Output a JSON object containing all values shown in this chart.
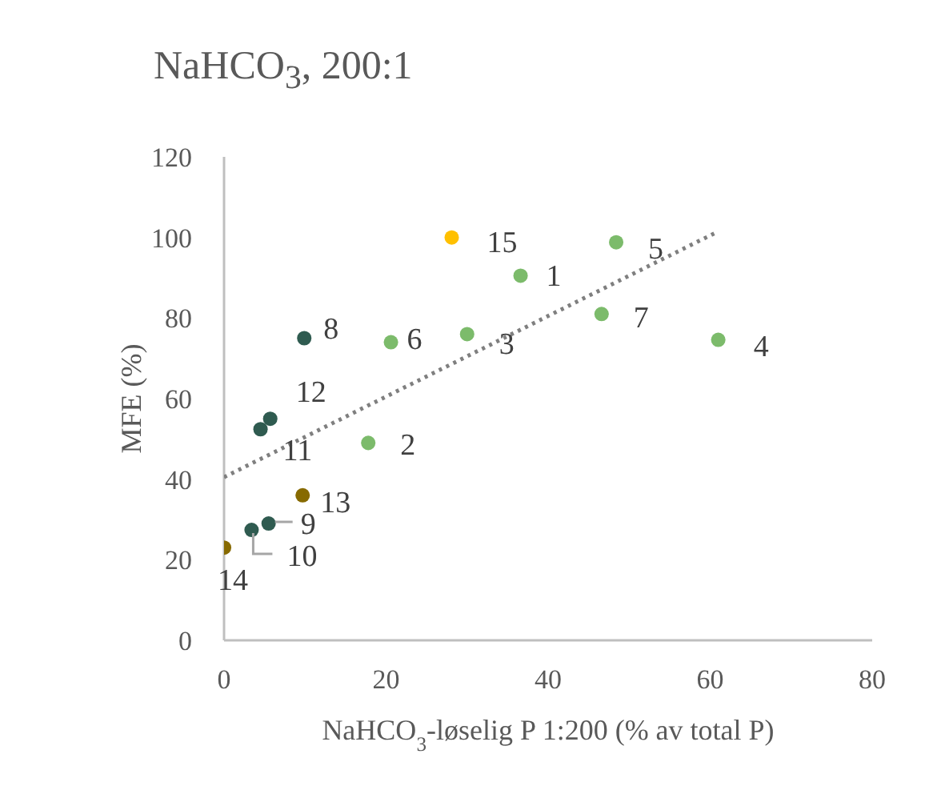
{
  "chart_data": {
    "type": "scatter",
    "title": "NaHCO$_{3}$, 200:1",
    "xlabel": "NaHCO$_{3}$-løselig P 1:200 (% av total P)",
    "ylabel": "MFE  (%)",
    "xlim": [
      0,
      80
    ],
    "xticks": [
      0,
      20,
      40,
      60,
      80
    ],
    "ylim": [
      0,
      120
    ],
    "yticks": [
      0,
      20,
      40,
      60,
      80,
      100,
      120
    ],
    "grid": false,
    "legend": false,
    "marker": "circle",
    "series": [
      {
        "x": [
          36.6,
          17.8,
          30,
          61,
          48.4,
          20.6,
          46.6,
          9.9,
          5.5,
          3.4,
          4.5,
          5.7,
          9.7,
          0,
          28.1
        ],
        "values": [
          90.5,
          49,
          76,
          74.6,
          98.8,
          74,
          81,
          75,
          29,
          27.4,
          52.4,
          55,
          36,
          23,
          100
        ],
        "colors": [
          "#7cbb6b",
          "#7cbb6b",
          "#7cbb6b",
          "#7cbb6b",
          "#7cbb6b",
          "#7cbb6b",
          "#7cbb6b",
          "#2f5b50",
          "#2f5b50",
          "#2f5b50",
          "#2f5b50",
          "#2f5b50",
          "#876a00",
          "#876a00",
          "#ffc000"
        ]
      },
      {
        "type": "line",
        "x": [
          0,
          61
        ],
        "values": [
          40.5,
          101.5
        ],
        "color": "#7f7f7f",
        "line_style": "dotted",
        "marker": "none"
      }
    ],
    "annotations": [
      {
        "text": "1",
        "x": 36.6,
        "y": 90.5
      },
      {
        "text": "2",
        "x": 17.8,
        "y": 49
      },
      {
        "text": "3",
        "x": 30,
        "y": 76
      },
      {
        "text": "4",
        "x": 61,
        "y": 74.6
      },
      {
        "text": "5",
        "x": 48.4,
        "y": 98.8
      },
      {
        "text": "6",
        "x": 20.6,
        "y": 74
      },
      {
        "text": "7",
        "x": 46.6,
        "y": 81
      },
      {
        "text": "8",
        "x": 9.9,
        "y": 75
      },
      {
        "text": "9",
        "x": 5.5,
        "y": 29
      },
      {
        "text": "10",
        "x": 3.4,
        "y": 27.4
      },
      {
        "text": "11",
        "x": 4.5,
        "y": 52.4
      },
      {
        "text": "12",
        "x": 5.7,
        "y": 55
      },
      {
        "text": "13",
        "x": 9.7,
        "y": 36
      },
      {
        "text": "14",
        "x": 0,
        "y": 23
      },
      {
        "text": "15",
        "x": 28.1,
        "y": 100
      }
    ]
  }
}
